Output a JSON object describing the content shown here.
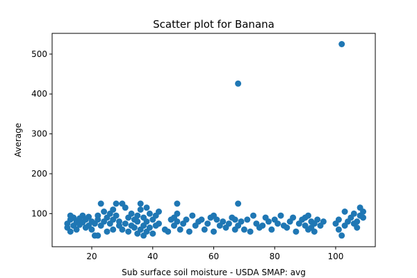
{
  "chart_data": {
    "type": "scatter",
    "title": "Scatter plot for Banana",
    "xlabel": "Sub surface soil moisture - USDA SMAP: avg",
    "ylabel": "Average",
    "xlim": [
      7,
      113
    ],
    "ylim": [
      17,
      552
    ],
    "xticks": [
      20,
      40,
      60,
      80,
      100
    ],
    "yticks": [
      100,
      200,
      300,
      400,
      500
    ],
    "grid": false,
    "marker_color": "#1f77b4",
    "x": [
      12,
      12,
      13,
      13,
      13,
      14,
      14,
      15,
      15,
      16,
      16,
      17,
      17,
      18,
      18,
      19,
      19,
      20,
      20,
      21,
      21,
      22,
      22,
      22,
      23,
      23,
      24,
      24,
      25,
      25,
      26,
      26,
      27,
      27,
      27,
      28,
      28,
      29,
      29,
      30,
      30,
      31,
      31,
      32,
      32,
      33,
      33,
      34,
      34,
      35,
      35,
      35,
      36,
      36,
      36,
      37,
      37,
      37,
      38,
      38,
      38,
      39,
      39,
      40,
      40,
      41,
      41,
      42,
      42,
      44,
      45,
      46,
      47,
      47,
      48,
      48,
      48,
      49,
      50,
      51,
      52,
      53,
      54,
      55,
      56,
      57,
      58,
      59,
      60,
      60,
      61,
      62,
      63,
      64,
      65,
      66,
      67,
      67,
      68,
      68,
      68,
      69,
      70,
      71,
      72,
      73,
      74,
      75,
      76,
      77,
      78,
      79,
      80,
      81,
      82,
      83,
      84,
      85,
      86,
      87,
      88,
      89,
      90,
      90,
      91,
      91,
      92,
      92,
      93,
      93,
      94,
      95,
      96,
      100,
      101,
      101,
      102,
      102,
      103,
      103,
      104,
      105,
      106,
      106,
      107,
      107,
      108,
      108,
      109,
      109
    ],
    "y": [
      75,
      65,
      85,
      55,
      95,
      70,
      90,
      80,
      60,
      88,
      72,
      95,
      78,
      85,
      65,
      92,
      70,
      80,
      60,
      75,
      45,
      95,
      45,
      85,
      125,
      70,
      105,
      80,
      90,
      55,
      100,
      75,
      60,
      85,
      110,
      125,
      95,
      70,
      80,
      125,
      60,
      115,
      75,
      90,
      55,
      100,
      70,
      85,
      65,
      95,
      50,
      80,
      110,
      60,
      125,
      45,
      90,
      70,
      115,
      55,
      80,
      100,
      65,
      85,
      50,
      95,
      70,
      105,
      75,
      60,
      55,
      85,
      90,
      70,
      125,
      100,
      80,
      60,
      75,
      85,
      55,
      95,
      70,
      80,
      85,
      60,
      75,
      90,
      95,
      55,
      85,
      70,
      80,
      65,
      75,
      90,
      85,
      60,
      426,
      125,
      70,
      80,
      60,
      85,
      55,
      95,
      75,
      65,
      70,
      90,
      80,
      60,
      85,
      75,
      95,
      70,
      65,
      80,
      90,
      55,
      75,
      85,
      90,
      70,
      60,
      95,
      80,
      65,
      75,
      55,
      85,
      70,
      80,
      75,
      60,
      85,
      45,
      525,
      105,
      70,
      80,
      90,
      75,
      100,
      80,
      65,
      115,
      95,
      105,
      90
    ]
  }
}
